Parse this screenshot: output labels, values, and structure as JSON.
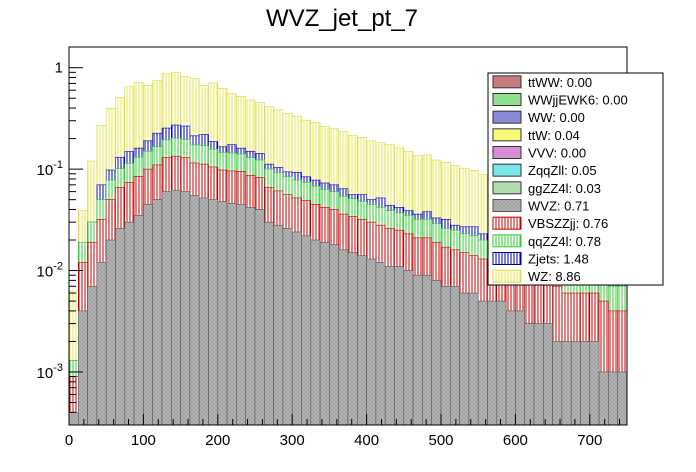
{
  "chart_data": {
    "type": "bar",
    "stacked": true,
    "title": "WVZ_jet_pt_7",
    "xlabel": "",
    "ylabel": "",
    "xlim": [
      0,
      750
    ],
    "ylim": [
      0.0003,
      1.6
    ],
    "y_scale": "log",
    "x_ticks": [
      "0",
      "100",
      "200",
      "300",
      "400",
      "500",
      "600",
      "700"
    ],
    "y_ticks": [
      "10^-3",
      "10^-2",
      "10^-1",
      "1"
    ],
    "bin_width": 12.5,
    "legend_position": "top-right",
    "stack_order": [
      "WVZ",
      "VBSZZjj",
      "qqZZ4l",
      "Zjets",
      "WZ"
    ],
    "series": [
      {
        "name": "ttWW",
        "label": "ttWW: 0.00",
        "fill": "#c87a82",
        "pattern": "solid",
        "values": []
      },
      {
        "name": "WWjjEWK6",
        "label": "WWjjEWK6: 0.00",
        "fill": "#8ee08e",
        "pattern": "solid",
        "values": []
      },
      {
        "name": "WW",
        "label": "WW: 0.00",
        "fill": "#8989d6",
        "pattern": "solid",
        "values": []
      },
      {
        "name": "ttW",
        "label": "ttW: 0.04",
        "fill": "#fafa7a",
        "pattern": "solid",
        "values": []
      },
      {
        "name": "VVV",
        "label": "VVV: 0.00",
        "fill": "#d58ed5",
        "pattern": "solid",
        "values": []
      },
      {
        "name": "ZqqZll",
        "label": "ZqqZll: 0.05",
        "fill": "#7ae8e8",
        "pattern": "solid",
        "values": []
      },
      {
        "name": "ggZZ4l",
        "label": "ggZZ4l: 0.03",
        "fill": "#b0dcb0",
        "pattern": "solid",
        "values": []
      },
      {
        "name": "WVZ",
        "label": "WVZ: 0.71",
        "fill": "#a8a8a8",
        "pattern": "crosshatch",
        "values": [
          0.0004,
          0.004,
          0.007,
          0.012,
          0.02,
          0.026,
          0.03,
          0.035,
          0.045,
          0.05,
          0.06,
          0.062,
          0.06,
          0.055,
          0.052,
          0.05,
          0.048,
          0.046,
          0.045,
          0.042,
          0.04,
          0.03,
          0.028,
          0.026,
          0.024,
          0.022,
          0.02,
          0.019,
          0.018,
          0.016,
          0.015,
          0.014,
          0.013,
          0.012,
          0.011,
          0.011,
          0.01,
          0.009,
          0.009,
          0.008,
          0.007,
          0.007,
          0.006,
          0.006,
          0.005,
          0.005,
          0.005,
          0.004,
          0.004,
          0.003,
          0.003,
          0.003,
          0.002,
          0.002,
          0.002,
          0.002,
          0.002,
          0.001,
          0.001,
          0.001
        ]
      },
      {
        "name": "VBSZZjj",
        "label": "VBSZZjj: 0.76",
        "fill": "#ffffff",
        "pattern": "red-vertical",
        "values": [
          0.0005,
          0.008,
          0.012,
          0.02,
          0.03,
          0.04,
          0.044,
          0.05,
          0.055,
          0.06,
          0.07,
          0.072,
          0.07,
          0.06,
          0.06,
          0.055,
          0.05,
          0.05,
          0.05,
          0.045,
          0.043,
          0.036,
          0.033,
          0.03,
          0.028,
          0.027,
          0.025,
          0.023,
          0.022,
          0.02,
          0.019,
          0.018,
          0.017,
          0.016,
          0.015,
          0.014,
          0.013,
          0.012,
          0.012,
          0.011,
          0.01,
          0.009,
          0.009,
          0.008,
          0.008,
          0.007,
          0.007,
          0.006,
          0.006,
          0.005,
          0.005,
          0.005,
          0.005,
          0.004,
          0.004,
          0.004,
          0.004,
          0.004,
          0.003,
          0.003
        ]
      },
      {
        "name": "qqZZ4l",
        "label": "qqZZ4l: 0.78",
        "fill": "#ffffff",
        "pattern": "green-vertical",
        "values": [
          0.0004,
          0.007,
          0.011,
          0.018,
          0.028,
          0.035,
          0.04,
          0.046,
          0.05,
          0.056,
          0.064,
          0.068,
          0.066,
          0.058,
          0.058,
          0.052,
          0.048,
          0.048,
          0.046,
          0.043,
          0.04,
          0.034,
          0.031,
          0.028,
          0.026,
          0.025,
          0.023,
          0.021,
          0.02,
          0.018,
          0.017,
          0.016,
          0.015,
          0.014,
          0.013,
          0.012,
          0.012,
          0.011,
          0.011,
          0.01,
          0.009,
          0.009,
          0.008,
          0.008,
          0.007,
          0.007,
          0.006,
          0.006,
          0.006,
          0.005,
          0.005,
          0.005,
          0.004,
          0.004,
          0.004,
          0.004,
          0.004,
          0.003,
          0.003,
          0.003
        ]
      },
      {
        "name": "Zjets",
        "label": "Zjets: 1.48",
        "fill": "#ffffff",
        "pattern": "blue-vertical",
        "values": [
          0.0,
          0.0,
          0.0,
          0.02,
          0.02,
          0.03,
          0.035,
          0.03,
          0.04,
          0.06,
          0.06,
          0.07,
          0.07,
          0.04,
          0.05,
          0.03,
          0.02,
          0.03,
          0.02,
          0.02,
          0.02,
          0.012,
          0.012,
          0.01,
          0.015,
          0.01,
          0.01,
          0.01,
          0.01,
          0.01,
          0.005,
          0.008,
          0.005,
          0.01,
          0.005,
          0.005,
          0.004,
          0.004,
          0.006,
          0.004,
          0.006,
          0.003,
          0.004,
          0.005,
          0.003,
          0.003,
          0.003,
          0.004,
          0.003,
          0.003,
          0.01,
          0.004,
          0.006,
          0.004,
          0.004,
          0.01,
          0.006,
          0.004,
          0.004,
          0.002
        ]
      },
      {
        "name": "WZ",
        "label": "WZ: 8.86",
        "fill": "#ffff99",
        "pattern": "yellow-vertical",
        "values": [
          0.005,
          0.02,
          0.09,
          0.2,
          0.3,
          0.38,
          0.5,
          0.55,
          0.48,
          0.52,
          0.62,
          0.62,
          0.55,
          0.57,
          0.45,
          0.52,
          0.46,
          0.38,
          0.36,
          0.33,
          0.31,
          0.3,
          0.28,
          0.26,
          0.24,
          0.22,
          0.21,
          0.19,
          0.18,
          0.17,
          0.16,
          0.15,
          0.14,
          0.13,
          0.13,
          0.12,
          0.11,
          0.1,
          0.1,
          0.09,
          0.085,
          0.08,
          0.075,
          0.07,
          0.065,
          0.06,
          0.055,
          0.05,
          0.05,
          0.045,
          0.04,
          0.04,
          0.035,
          0.035,
          0.03,
          0.03,
          0.028,
          0.025,
          0.025,
          0.02
        ]
      }
    ]
  }
}
